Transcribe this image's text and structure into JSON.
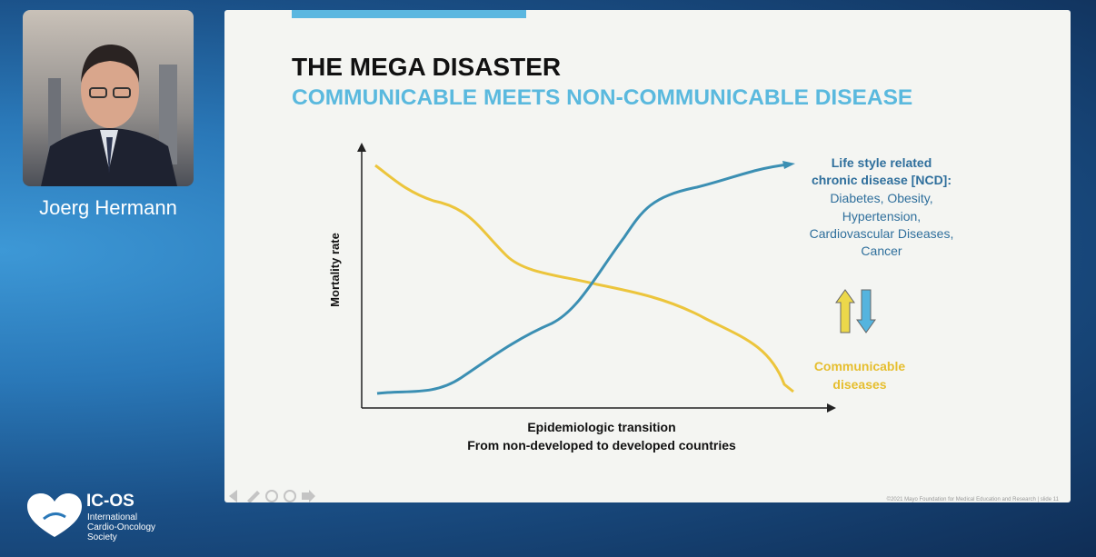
{
  "speaker": {
    "name": "Joerg Hermann"
  },
  "logo": {
    "title": "IC-OS",
    "lines": [
      "International",
      "Cardio-Oncology",
      "Society"
    ]
  },
  "slide": {
    "title": "THE MEGA DISASTER",
    "subtitle": "COMMUNICABLE MEETS NON-COMMUNICABLE DISEASE",
    "y_label": "Mortality rate",
    "x_label": [
      "Epidemiologic transition",
      "From non-developed to developed countries"
    ],
    "ncd_label": [
      "Life style related",
      "chronic disease [NCD]:"
    ],
    "ncd_items": [
      "Diabetes, Obesity,",
      "Hypertension,",
      "Cardiovascular Diseases,",
      "Cancer"
    ],
    "communicable_label": [
      "Communicable",
      "diseases"
    ],
    "footer": "©2021 Mayo Foundation for Medical Education and Research  |  slide 11"
  }
}
